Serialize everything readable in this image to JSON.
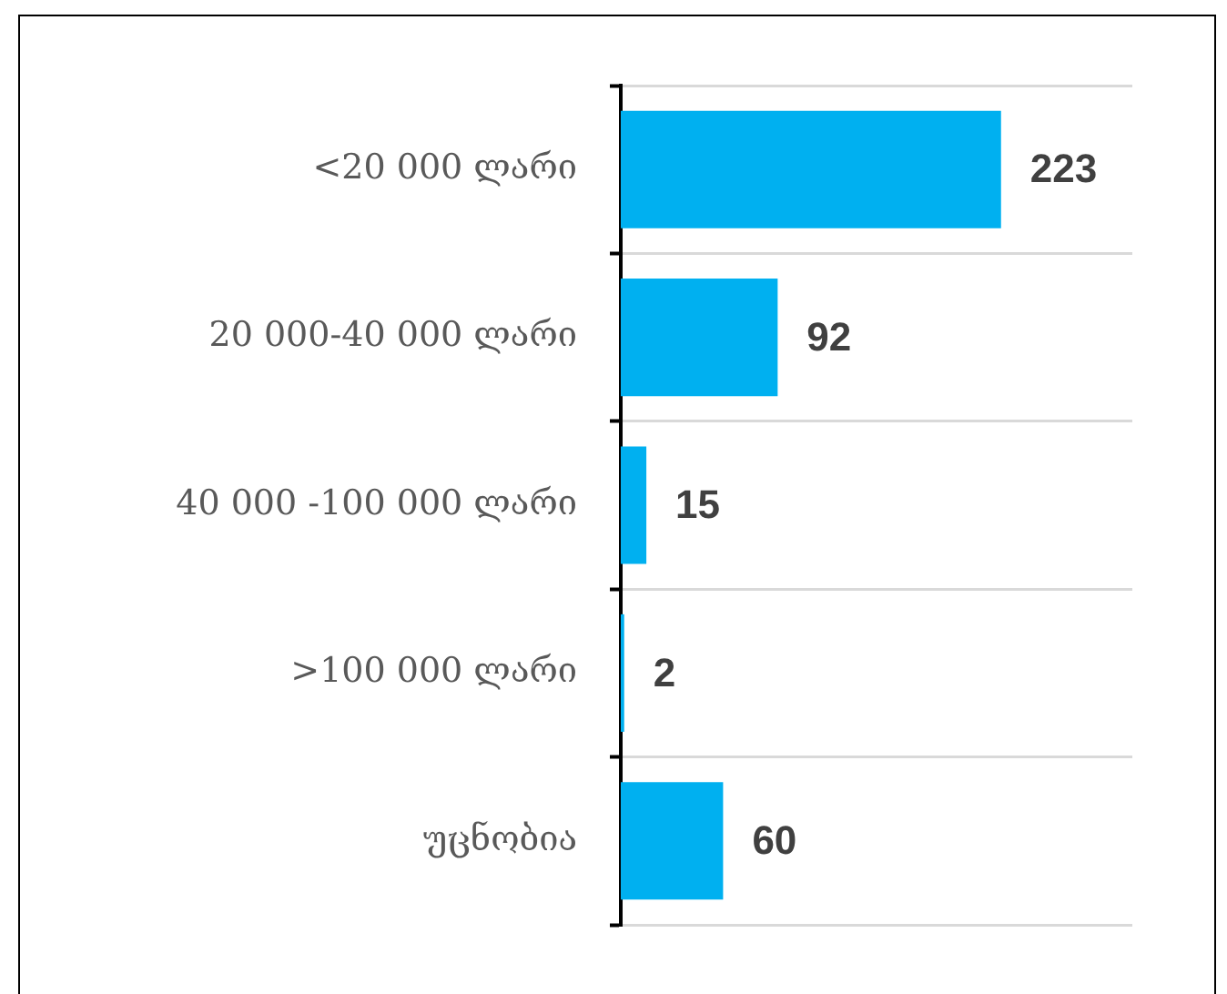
{
  "chart_data": {
    "type": "bar",
    "orientation": "horizontal",
    "categories": [
      "<20 000 ლარი",
      "20 000-40 000 ლარი",
      "40 000 -100 000 ლარი",
      ">100 000 ლარი",
      "უცნობია"
    ],
    "values": [
      223,
      92,
      15,
      2,
      60
    ],
    "color": "#00b0f0",
    "xlim": [
      0,
      300
    ],
    "tick_labels": "y",
    "grid": "y",
    "data_labels": true
  }
}
